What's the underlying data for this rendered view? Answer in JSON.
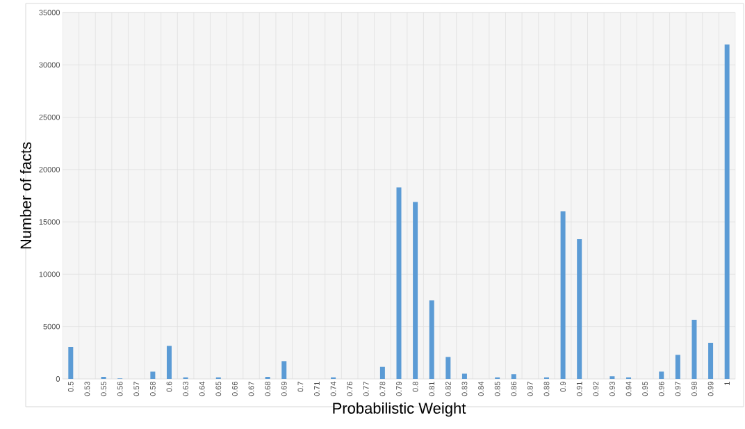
{
  "chart_data": {
    "type": "bar",
    "xlabel": "Probabilistic Weight",
    "ylabel": "Number of facts",
    "categories": [
      "0.5",
      "0.53",
      "0.55",
      "0.56",
      "0.57",
      "0.58",
      "0.6",
      "0.63",
      "0.64",
      "0.65",
      "0.66",
      "0.67",
      "0.68",
      "0.69",
      "0.7",
      "0.71",
      "0.74",
      "0.76",
      "0.77",
      "0.78",
      "0.79",
      "0.8",
      "0.81",
      "0.82",
      "0.83",
      "0.84",
      "0.85",
      "0.86",
      "0.87",
      "0.88",
      "0.9",
      "0.91",
      "0.92",
      "0.93",
      "0.94",
      "0.95",
      "0.96",
      "0.97",
      "0.98",
      "0.99",
      "1"
    ],
    "values": [
      3050,
      0,
      200,
      50,
      0,
      700,
      3150,
      150,
      0,
      150,
      0,
      0,
      200,
      1700,
      0,
      0,
      150,
      0,
      0,
      1150,
      18300,
      16900,
      7500,
      2100,
      500,
      0,
      150,
      450,
      0,
      150,
      16000,
      13350,
      0,
      250,
      150,
      0,
      700,
      2300,
      5650,
      3450,
      31950
    ],
    "color": "#5b9bd5",
    "ylim": [
      0,
      35000
    ],
    "yticks": [
      0,
      5000,
      10000,
      15000,
      20000,
      25000,
      30000,
      35000
    ],
    "grid": true
  }
}
